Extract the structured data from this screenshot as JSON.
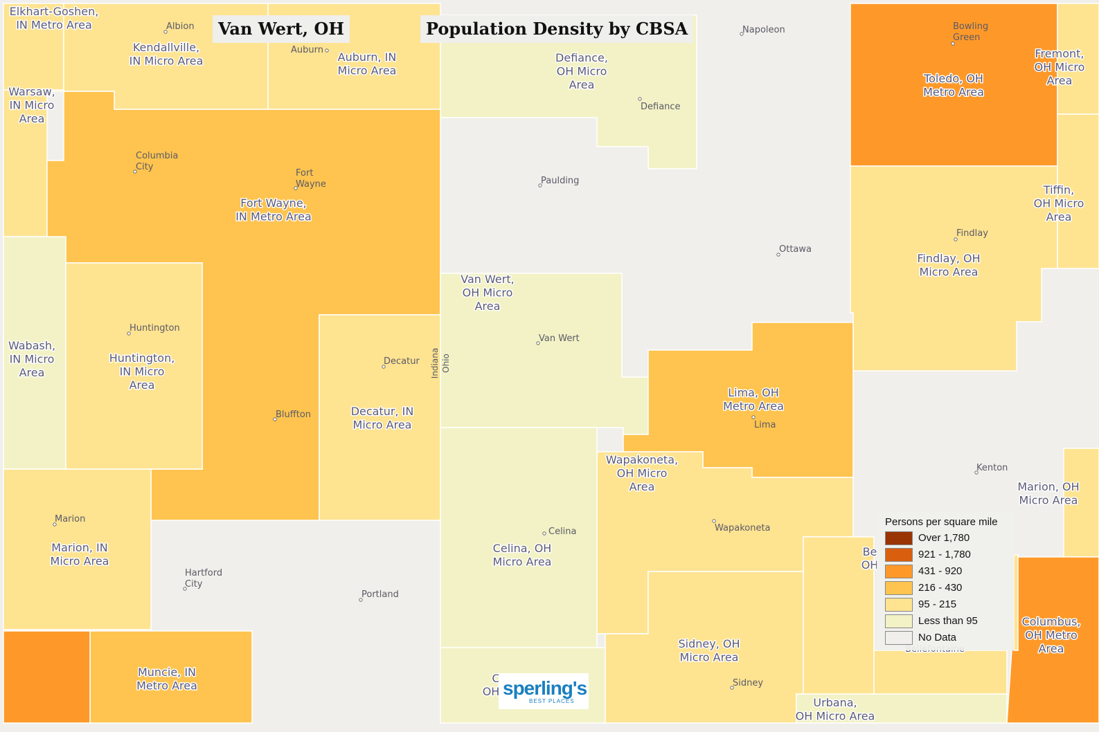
{
  "map": {
    "location_title": "Van Wert, OH",
    "map_title": "Population Density by CBSA",
    "state_labels": [
      "Indiana",
      "Ohio"
    ],
    "colors": {
      "over_1780": "#993404",
      "c921_1780": "#d95f0e",
      "c431_920": "#fe9929",
      "c216_430": "#fec44f",
      "c95_215": "#fee391",
      "lt95": "#f2f2c6",
      "nodata": "#f0efeb",
      "border": "#ffffff"
    },
    "areas": [
      {
        "name": "Elkhart-Goshen, IN Metro Area",
        "lines": [
          "Elkhart-Goshen,",
          "IN Metro Area"
        ],
        "density_class": "95 - 215"
      },
      {
        "name": "Kendallville, IN Micro Area",
        "lines": [
          "Kendallville,",
          "IN Micro Area"
        ],
        "density_class": "95 - 215"
      },
      {
        "name": "Auburn, IN Micro Area",
        "lines": [
          "Auburn, IN",
          "Micro Area"
        ],
        "density_class": "95 - 215"
      },
      {
        "name": "Defiance, OH Micro Area",
        "lines": [
          "Defiance,",
          "OH Micro",
          "Area"
        ],
        "density_class": "Less than 95"
      },
      {
        "name": "Toledo, OH Metro Area",
        "lines": [
          "Toledo, OH",
          "Metro Area"
        ],
        "density_class": "431 - 920"
      },
      {
        "name": "Fremont, OH Micro Area",
        "lines": [
          "Fremont,",
          "OH Micro",
          "Area"
        ],
        "density_class": "95 - 215"
      },
      {
        "name": "Warsaw, IN Micro Area",
        "lines": [
          "Warsaw,",
          "IN Micro",
          "Area"
        ],
        "density_class": "95 - 215"
      },
      {
        "name": "Fort Wayne, IN Metro Area",
        "lines": [
          "Fort Wayne,",
          "IN Metro Area"
        ],
        "density_class": "216 - 430"
      },
      {
        "name": "Tiffin, OH Micro Area",
        "lines": [
          "Tiffin,",
          "OH Micro",
          "Area"
        ],
        "density_class": "95 - 215"
      },
      {
        "name": "Findlay, OH Micro Area",
        "lines": [
          "Findlay, OH",
          "Micro Area"
        ],
        "density_class": "95 - 215"
      },
      {
        "name": "Van Wert, OH Micro Area",
        "lines": [
          "Van Wert,",
          "OH Micro",
          "Area"
        ],
        "density_class": "Less than 95"
      },
      {
        "name": "Wabash, IN Micro Area",
        "lines": [
          "Wabash,",
          "IN Micro",
          "Area"
        ],
        "density_class": "Less than 95"
      },
      {
        "name": "Huntington, IN Micro Area",
        "lines": [
          "Huntington,",
          "IN Micro",
          "Area"
        ],
        "density_class": "95 - 215"
      },
      {
        "name": "Decatur, IN Micro Area",
        "lines": [
          "Decatur, IN",
          "Micro Area"
        ],
        "density_class": "95 - 215"
      },
      {
        "name": "Lima, OH Metro Area",
        "lines": [
          "Lima, OH",
          "Metro Area"
        ],
        "density_class": "216 - 430"
      },
      {
        "name": "Wapakoneta, OH Micro Area",
        "lines": [
          "Wapakoneta,",
          "OH Micro",
          "Area"
        ],
        "density_class": "95 - 215"
      },
      {
        "name": "Marion, OH Micro Area",
        "lines": [
          "Marion, OH",
          "Micro Area"
        ],
        "density_class": "95 - 215"
      },
      {
        "name": "Marion, IN Micro Area",
        "lines": [
          "Marion, IN",
          "Micro Area"
        ],
        "density_class": "95 - 215"
      },
      {
        "name": "Celina, OH Micro Area",
        "lines": [
          "Celina, OH",
          "Micro Area"
        ],
        "density_class": "Less than 95"
      },
      {
        "name": "Columbus, OH Metro Area",
        "lines": [
          "Columbus,",
          "OH Metro",
          "Area"
        ],
        "density_class": "431 - 920"
      },
      {
        "name": "Sidney, OH Micro Area",
        "lines": [
          "Sidney, OH",
          "Micro Area"
        ],
        "density_class": "95 - 215"
      },
      {
        "name": "Muncie, IN Metro Area",
        "lines": [
          "Muncie, IN",
          "Metro Area"
        ],
        "density_class": "216 - 430"
      },
      {
        "name": "Urbana, OH Micro Area",
        "lines": [
          "Urbana,",
          "OH Micro Area"
        ],
        "density_class": "Less than 95"
      }
    ],
    "partial_labels": [
      "Be",
      "OH",
      "C",
      "OH",
      "Bellefontaine"
    ],
    "cities": [
      {
        "lines": [
          "Albion"
        ]
      },
      {
        "lines": [
          "Auburn"
        ]
      },
      {
        "lines": [
          "Napoleon"
        ]
      },
      {
        "lines": [
          "Bowling",
          "Green"
        ]
      },
      {
        "lines": [
          "Defiance"
        ]
      },
      {
        "lines": [
          "Columbia",
          "City"
        ]
      },
      {
        "lines": [
          "Fort",
          "Wayne"
        ]
      },
      {
        "lines": [
          "Paulding"
        ]
      },
      {
        "lines": [
          "Findlay"
        ]
      },
      {
        "lines": [
          "Ottawa"
        ]
      },
      {
        "lines": [
          "Huntington"
        ]
      },
      {
        "lines": [
          "Van Wert"
        ]
      },
      {
        "lines": [
          "Decatur"
        ]
      },
      {
        "lines": [
          "Bluffton"
        ]
      },
      {
        "lines": [
          "Lima"
        ]
      },
      {
        "lines": [
          "Kenton"
        ]
      },
      {
        "lines": [
          "Marion"
        ]
      },
      {
        "lines": [
          "Wapakoneta"
        ]
      },
      {
        "lines": [
          "Celina"
        ]
      },
      {
        "lines": [
          "Hartford",
          "City"
        ]
      },
      {
        "lines": [
          "Portland"
        ]
      },
      {
        "lines": [
          "Sidney"
        ]
      }
    ]
  },
  "legend": {
    "title": "Persons per square mile",
    "items": [
      {
        "label": "Over 1,780",
        "color": "#993404"
      },
      {
        "label": "921 - 1,780",
        "color": "#d95f0e"
      },
      {
        "label": "431 - 920",
        "color": "#fe9929"
      },
      {
        "label": "216 - 430",
        "color": "#fec44f"
      },
      {
        "label": "95 - 215",
        "color": "#fee391"
      },
      {
        "label": "Less than 95",
        "color": "#f2f2c6"
      },
      {
        "label": "No Data",
        "color": "#f0efeb"
      }
    ]
  },
  "logo": {
    "name": "sperling's",
    "tagline": "BEST PLACES"
  }
}
